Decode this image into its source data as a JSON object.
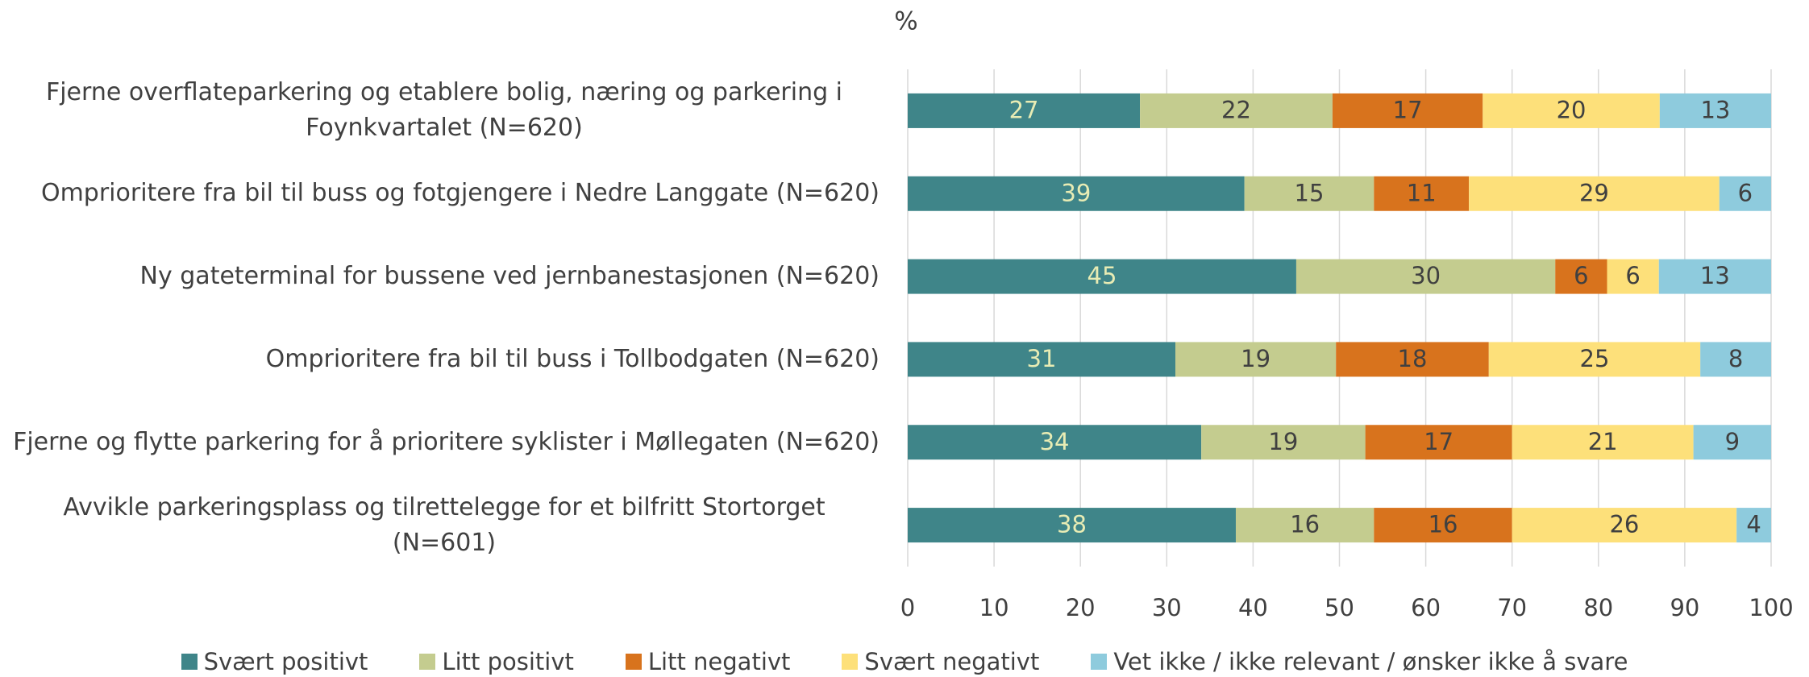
{
  "chart_data": {
    "type": "stacked-bar-horizontal",
    "title": "%",
    "categories": [
      "Fjerne overflateparkering og etablere bolig, næring og parkering i Foynkvartalet (N=620)",
      "Omprioritere fra bil til buss og fotgjengere i Nedre Langgate (N=620)",
      "Ny gateterminal for bussene ved jernbanestasjonen (N=620)",
      "Omprioritere fra bil til buss i Tollbodgaten (N=620)",
      "Fjerne og flytte parkering for å prioritere syklister i Møllegaten (N=620)",
      "Avvikle parkeringsplass og tilrettelegge for et bilfritt Stortorget (N=601)"
    ],
    "series": [
      {
        "name": "Svært positivt",
        "color": "#3f8589",
        "label_color": "#e8ecb4",
        "values": [
          26.9,
          39,
          45,
          31.0,
          34,
          38
        ],
        "value_labels": [
          "27",
          "39",
          "45",
          "31",
          "34",
          "38"
        ]
      },
      {
        "name": "Litt positivt",
        "color": "#c4cc8f",
        "label_color": "#404040",
        "values": [
          22.3,
          15,
          30,
          18.6,
          19,
          16
        ],
        "value_labels": [
          "22",
          "15",
          "30",
          "19",
          "19",
          "16"
        ]
      },
      {
        "name": "Litt negativt",
        "color": "#d8731d",
        "label_color": "#404040",
        "values": [
          17.4,
          11,
          6,
          17.7,
          17,
          16
        ],
        "value_labels": [
          "17",
          "11",
          "6",
          "18",
          "17",
          "16"
        ]
      },
      {
        "name": "Svært negativt",
        "color": "#fde07a",
        "label_color": "#404040",
        "values": [
          20.5,
          29,
          6,
          24.5,
          21,
          26
        ],
        "value_labels": [
          "20",
          "29",
          "6",
          "25",
          "21",
          "26"
        ]
      },
      {
        "name": "Vet ikke / ikke relevant / ønsker ikke å svare",
        "color": "#8ecbdd",
        "label_color": "#404040",
        "values": [
          12.9,
          6,
          13,
          8.2,
          9,
          4
        ],
        "value_labels": [
          "13",
          "6",
          "13",
          "8",
          "9",
          "4"
        ]
      }
    ],
    "xlim": [
      0,
      100
    ],
    "xticks": [
      0,
      10,
      20,
      30,
      40,
      50,
      60,
      70,
      80,
      90,
      100
    ],
    "grid": true,
    "legend": "bottom"
  }
}
